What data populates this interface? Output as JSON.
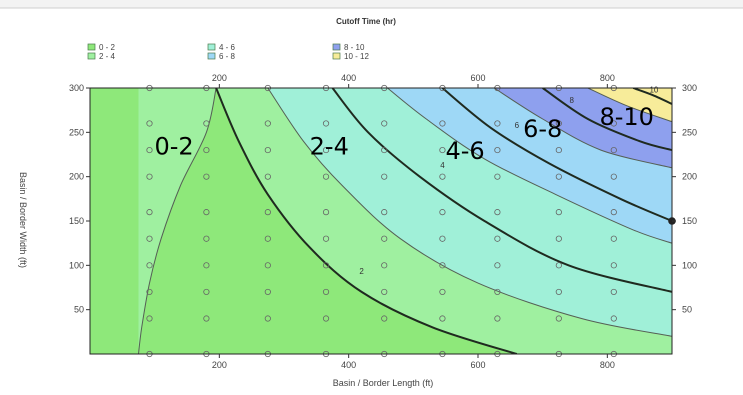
{
  "chart_data": {
    "type": "contour",
    "title": "Cutoff Time (hr)",
    "xlabel": "Basin / Border Length (ft)",
    "ylabel": "Basin / Border Width (ft)",
    "xlim": [
      0,
      900
    ],
    "ylim": [
      0,
      300
    ],
    "x_ticks": [
      "200",
      "400",
      "600",
      "800"
    ],
    "y_ticks": [
      "50",
      "100",
      "150",
      "200",
      "250",
      "300"
    ],
    "legend": [
      {
        "label": "0 - 2",
        "color": "#8ee87a"
      },
      {
        "label": "2 - 4",
        "color": "#9ff0a0"
      },
      {
        "label": "4 - 6",
        "color": "#a0f0d8"
      },
      {
        "label": "6 - 8",
        "color": "#9ed8f6"
      },
      {
        "label": "8 - 10",
        "color": "#8ea0ee"
      },
      {
        "label": "10 - 12",
        "color": "#f7ec9a"
      }
    ],
    "bands": [
      {
        "name": "0-2",
        "color": "#8ee87a"
      },
      {
        "name": "2-4",
        "color": "#9ff0a0"
      },
      {
        "name": "4-6",
        "color": "#a0f0d8"
      },
      {
        "name": "6-8",
        "color": "#9ed8f6"
      },
      {
        "name": "8-10",
        "color": "#8ea0ee"
      },
      {
        "name": "10-12",
        "color": "#f7ec9a"
      }
    ],
    "contour_lines": [
      {
        "level": "1",
        "bold": false,
        "points": [
          [
            75,
            0
          ],
          [
            80,
            30
          ],
          [
            92,
            80
          ],
          [
            110,
            130
          ],
          [
            140,
            190
          ],
          [
            180,
            250
          ],
          [
            195,
            300
          ]
        ]
      },
      {
        "level": "2",
        "bold": true,
        "points": [
          [
            195,
            300
          ],
          [
            230,
            240
          ],
          [
            275,
            180
          ],
          [
            340,
            120
          ],
          [
            420,
            70
          ],
          [
            530,
            30
          ],
          [
            660,
            0
          ]
        ]
      },
      {
        "level": "3",
        "bold": false,
        "points": [
          [
            275,
            300
          ],
          [
            330,
            240
          ],
          [
            390,
            190
          ],
          [
            480,
            130
          ],
          [
            600,
            80
          ],
          [
            760,
            40
          ],
          [
            900,
            20
          ]
        ]
      },
      {
        "level": "4",
        "bold": true,
        "points": [
          [
            375,
            300
          ],
          [
            430,
            250
          ],
          [
            510,
            200
          ],
          [
            610,
            150
          ],
          [
            740,
            100
          ],
          [
            900,
            70
          ]
        ]
      },
      {
        "level": "5",
        "bold": false,
        "points": [
          [
            460,
            300
          ],
          [
            520,
            265
          ],
          [
            610,
            220
          ],
          [
            720,
            180
          ],
          [
            840,
            140
          ],
          [
            900,
            125
          ]
        ]
      },
      {
        "level": "6",
        "bold": true,
        "points": [
          [
            545,
            300
          ],
          [
            620,
            255
          ],
          [
            710,
            215
          ],
          [
            820,
            175
          ],
          [
            900,
            150
          ]
        ]
      },
      {
        "level": "7",
        "bold": false,
        "points": [
          [
            625,
            300
          ],
          [
            700,
            265
          ],
          [
            790,
            230
          ],
          [
            900,
            210
          ]
        ]
      },
      {
        "level": "8",
        "bold": true,
        "points": [
          [
            700,
            300
          ],
          [
            770,
            265
          ],
          [
            850,
            240
          ],
          [
            900,
            230
          ]
        ]
      },
      {
        "level": "9",
        "bold": false,
        "points": [
          [
            770,
            300
          ],
          [
            830,
            280
          ],
          [
            900,
            262
          ]
        ]
      },
      {
        "level": "10",
        "bold": true,
        "points": [
          [
            840,
            300
          ],
          [
            870,
            292
          ],
          [
            900,
            282
          ]
        ]
      }
    ],
    "line_labels": [
      {
        "text": "2",
        "x": 420,
        "y": 90
      },
      {
        "text": "4",
        "x": 545,
        "y": 210
      },
      {
        "text": "6",
        "x": 660,
        "y": 255
      },
      {
        "text": "8",
        "x": 745,
        "y": 283
      },
      {
        "text": "10",
        "x": 872,
        "y": 295
      }
    ],
    "region_labels": [
      {
        "text": "0-2",
        "x": 130,
        "y": 225
      },
      {
        "text": "2-4",
        "x": 370,
        "y": 225
      },
      {
        "text": "4-6",
        "x": 580,
        "y": 220
      },
      {
        "text": "6-8",
        "x": 700,
        "y": 245
      },
      {
        "text": "8-10",
        "x": 830,
        "y": 258
      }
    ],
    "sample_columns_x": [
      92,
      180,
      275,
      365,
      455,
      545,
      630,
      725,
      810
    ],
    "sample_rows_y": [
      0,
      40,
      70,
      100,
      130,
      160,
      200,
      230,
      260,
      300
    ]
  }
}
